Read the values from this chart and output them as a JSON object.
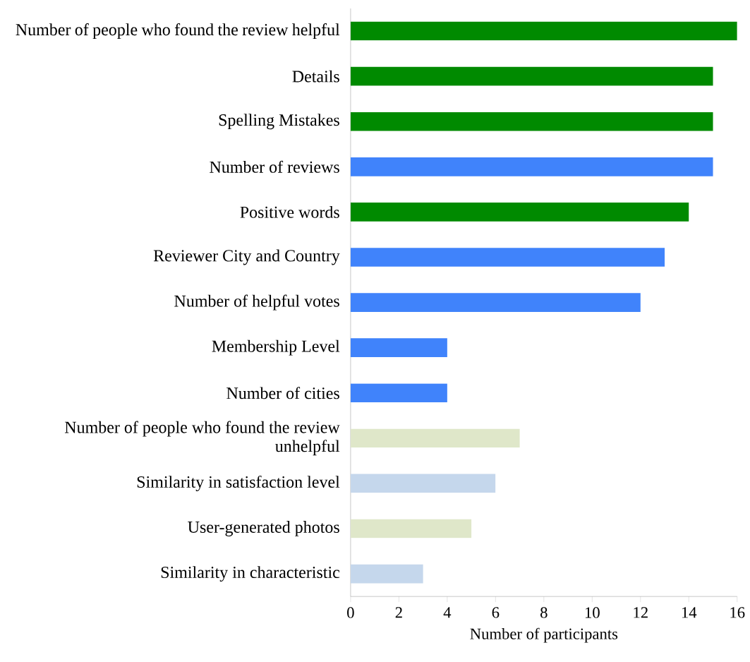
{
  "chart_data": {
    "type": "bar",
    "orientation": "horizontal",
    "xlabel": "Number of participants",
    "categories": [
      "Number of people who found the review helpful",
      "Details",
      "Spelling Mistakes",
      "Number of reviews",
      "Positive words",
      "Reviewer City and Country",
      "Number of helpful votes",
      "Membership Level",
      "Number of cities",
      "Number of people who found the review unhelpful",
      "Similarity in satisfaction level",
      "User-generated photos",
      "Similarity in characteristic"
    ],
    "values": [
      16,
      15,
      15,
      15,
      14,
      13,
      12,
      4,
      4,
      7,
      6,
      5,
      3
    ],
    "colors": [
      "#008a00",
      "#008a00",
      "#008a00",
      "#4083fb",
      "#008a00",
      "#4083fb",
      "#4083fb",
      "#4083fb",
      "#4083fb",
      "#dfe7c9",
      "#c5d7ec",
      "#dfe7c9",
      "#c5d7ec"
    ],
    "xlim": [
      0,
      16
    ],
    "xticks": [
      0,
      2,
      4,
      6,
      8,
      10,
      12,
      14,
      16
    ],
    "grid": false
  }
}
